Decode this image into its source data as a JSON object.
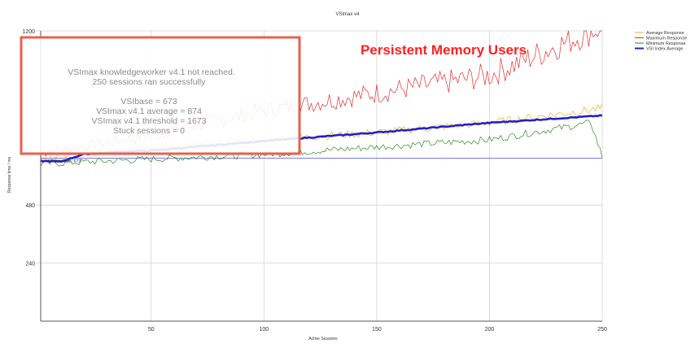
{
  "chart_data": {
    "type": "line",
    "title": "VSImax v4",
    "xlabel": "Active Sessions",
    "ylabel": "Response time / ms",
    "xlim": [
      1,
      250
    ],
    "ylim": [
      0,
      1200
    ],
    "x_ticks": [
      50,
      100,
      150,
      200,
      250
    ],
    "y_ticks": [
      240,
      480,
      1200
    ],
    "grid": true,
    "legend_position": "top-right",
    "colors": {
      "average": "#f0b020",
      "maximum": "#e03030",
      "minimum": "#2a8a20",
      "vsi_index_average": "#2020d0",
      "baseline": "#4040d0"
    },
    "series": [
      {
        "name": "Average Response",
        "key": "average",
        "points": [
          [
            1,
            676
          ],
          [
            25,
            700
          ],
          [
            50,
            720
          ],
          [
            100,
            750
          ],
          [
            150,
            780
          ],
          [
            200,
            820
          ],
          [
            250,
            880
          ]
        ]
      },
      {
        "name": "Maximum Response",
        "key": "maximum",
        "points": [
          [
            1,
            690
          ],
          [
            50,
            760
          ],
          [
            100,
            860
          ],
          [
            150,
            930
          ],
          [
            200,
            1000
          ],
          [
            250,
            1200
          ]
        ]
      },
      {
        "name": "Minimum Response",
        "key": "minimum",
        "points": [
          [
            1,
            650
          ],
          [
            50,
            670
          ],
          [
            100,
            690
          ],
          [
            150,
            720
          ],
          [
            200,
            750
          ],
          [
            245,
            820
          ],
          [
            250,
            680
          ]
        ]
      },
      {
        "name": "VSI Index Average",
        "key": "vsi_index_average",
        "points": [
          [
            1,
            662
          ],
          [
            10,
            660
          ],
          [
            20,
            690
          ],
          [
            35,
            700
          ],
          [
            50,
            705
          ],
          [
            100,
            745
          ],
          [
            150,
            780
          ],
          [
            200,
            820
          ],
          [
            250,
            850
          ]
        ]
      }
    ],
    "baseline": {
      "label": "VSI Baseline: 673",
      "value": 673
    },
    "overlay_title": "Persistent Memory Users",
    "annotation_box": {
      "line1": "VSImax knowledgeworker v4.1 not reached.",
      "line2": "250 sessions ran successfully",
      "line3": "VSIbase = 673",
      "line4": "VSImax v4.1 average = 874",
      "line5": "VSImax v4.1 threshold = 1673",
      "line6": "Stuck sessions = 0"
    }
  }
}
